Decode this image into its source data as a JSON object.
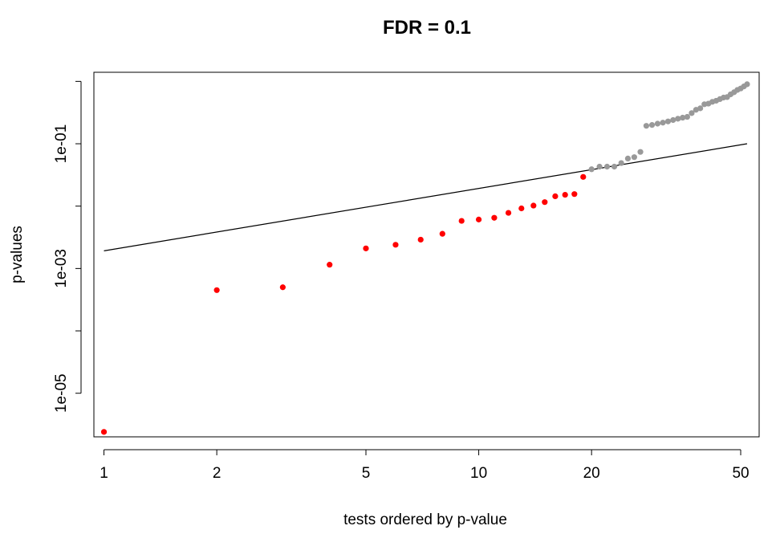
{
  "chart_data": {
    "type": "scatter",
    "title": "FDR = 0.1",
    "xlabel": "tests ordered by p-value",
    "ylabel": "p-values",
    "x_scale": "log",
    "y_scale": "log",
    "xlim": [
      0.94,
      56
    ],
    "ylim": [
      2e-06,
      1.4
    ],
    "x_ticks": [
      1,
      2,
      5,
      10,
      20,
      50
    ],
    "x_tick_labels": [
      "1",
      "2",
      "5",
      "10",
      "20",
      "50"
    ],
    "y_ticks": [
      1e-05,
      0.001,
      0.1
    ],
    "y_tick_labels": [
      "1e-05",
      "1e-03",
      "1e-01"
    ],
    "y_minor_ticks": [
      0.0001,
      0.01,
      1
    ],
    "grid": false,
    "fdr_line": {
      "fdr": 0.1,
      "n": 52,
      "x": [
        1,
        52
      ],
      "y": [
        0.00192,
        0.1
      ],
      "color": "#000000"
    },
    "series": [
      {
        "color": "#ff0000",
        "x": [
          1,
          2,
          3,
          4,
          5,
          6,
          7,
          8,
          9,
          10,
          11,
          12,
          13,
          14,
          15,
          16,
          17,
          18,
          19
        ],
        "y": [
          2.4e-06,
          0.00045,
          0.0005,
          0.00115,
          0.0021,
          0.0024,
          0.0029,
          0.0036,
          0.0058,
          0.0061,
          0.0065,
          0.0078,
          0.0092,
          0.0102,
          0.0116,
          0.0144,
          0.0152,
          0.0156,
          0.0294
        ]
      },
      {
        "color": "#999999",
        "x": [
          20,
          21,
          22,
          23,
          24,
          25,
          26,
          27,
          28,
          29,
          30,
          31,
          32,
          33,
          34,
          35,
          36,
          37,
          38,
          39,
          40,
          41,
          42,
          43,
          44,
          45,
          46,
          47,
          48,
          49,
          50,
          51,
          52
        ],
        "y": [
          0.039,
          0.043,
          0.043,
          0.043,
          0.049,
          0.058,
          0.061,
          0.074,
          0.194,
          0.2,
          0.21,
          0.218,
          0.228,
          0.24,
          0.252,
          0.262,
          0.27,
          0.31,
          0.35,
          0.37,
          0.43,
          0.44,
          0.47,
          0.49,
          0.52,
          0.55,
          0.56,
          0.62,
          0.67,
          0.73,
          0.77,
          0.83,
          0.9
        ]
      }
    ]
  }
}
